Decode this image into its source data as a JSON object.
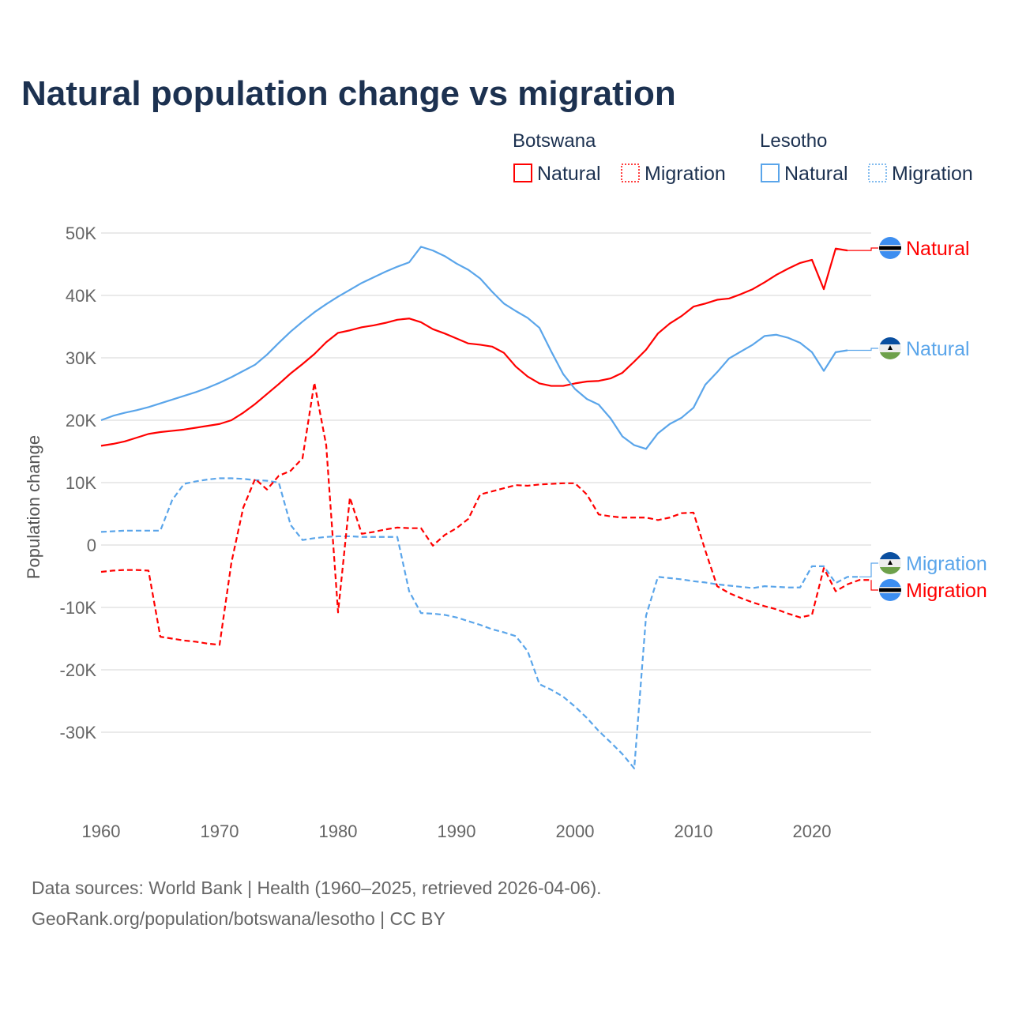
{
  "title": "Natural population change vs migration",
  "legend": {
    "groups": [
      {
        "country": "Botswana",
        "items": [
          "Natural",
          "Migration"
        ],
        "color": "#ff0000"
      },
      {
        "country": "Lesotho",
        "items": [
          "Natural",
          "Migration"
        ],
        "color": "#5aa5ea"
      }
    ]
  },
  "footer": {
    "line1": "Data sources: World Bank | Health (1960–2025, retrieved 2026-04-06).",
    "line2": "GeoRank.org/population/botswana/lesotho | CC BY"
  },
  "chart_data": {
    "type": "line",
    "title": "Natural population change vs migration",
    "xlabel": "",
    "ylabel": "Population change",
    "xlim": [
      1960,
      2025
    ],
    "ylim": [
      -40000,
      50000
    ],
    "x_ticks": [
      "1960",
      "1970",
      "1980",
      "1990",
      "2000",
      "2010",
      "2020"
    ],
    "y_ticks": [
      {
        "v": 50000,
        "label": "50K"
      },
      {
        "v": 40000,
        "label": "40K"
      },
      {
        "v": 30000,
        "label": "30K"
      },
      {
        "v": 20000,
        "label": "20K"
      },
      {
        "v": 10000,
        "label": "10K"
      },
      {
        "v": 0,
        "label": "0"
      },
      {
        "v": -10000,
        "label": "-10K"
      },
      {
        "v": -20000,
        "label": "-20K"
      },
      {
        "v": -30000,
        "label": "-30K"
      }
    ],
    "grid": true,
    "x_start": 1960,
    "series": [
      {
        "name": "Botswana Natural",
        "label": "Natural",
        "country": "Botswana",
        "color": "#ff0000",
        "dashed": false,
        "values": [
          15.9,
          16.2,
          16.6,
          17.2,
          17.8,
          18.1,
          18.3,
          18.5,
          18.8,
          19.1,
          19.4,
          20.0,
          21.2,
          22.6,
          24.2,
          25.8,
          27.5,
          29.0,
          30.6,
          32.5,
          34.0,
          34.4,
          34.9,
          35.2,
          35.6,
          36.1,
          36.3,
          35.7,
          34.6,
          33.9,
          33.1,
          32.3,
          32.1,
          31.8,
          30.8,
          28.6,
          27.0,
          25.9,
          25.5,
          25.5,
          25.9,
          26.2,
          26.3,
          26.7,
          27.6,
          29.4,
          31.3,
          33.9,
          35.5,
          36.7,
          38.2,
          38.7,
          39.3,
          39.5,
          40.2,
          41.0,
          42.1,
          43.3,
          44.3,
          45.2,
          45.7,
          41.0,
          47.5,
          47.2
        ]
      },
      {
        "name": "Lesotho Natural",
        "label": "Natural",
        "country": "Lesotho",
        "color": "#5aa5ea",
        "dashed": false,
        "values": [
          20.0,
          20.7,
          21.2,
          21.6,
          22.1,
          22.7,
          23.3,
          23.9,
          24.5,
          25.2,
          26.0,
          26.9,
          27.9,
          28.9,
          30.5,
          32.4,
          34.2,
          35.8,
          37.3,
          38.6,
          39.8,
          40.9,
          42.0,
          42.9,
          43.8,
          44.6,
          45.3,
          47.8,
          47.2,
          46.3,
          45.1,
          44.1,
          42.7,
          40.6,
          38.7,
          37.5,
          36.4,
          34.8,
          31.0,
          27.4,
          25.0,
          23.4,
          22.5,
          20.3,
          17.4,
          16.0,
          15.4,
          17.9,
          19.4,
          20.4,
          22.0,
          25.7,
          27.7,
          29.9,
          31.0,
          32.1,
          33.5,
          33.7,
          33.2,
          32.4,
          30.9,
          27.9,
          30.9,
          31.2
        ]
      },
      {
        "name": "Lesotho Migration",
        "label": "Migration",
        "country": "Lesotho",
        "color": "#5aa5ea",
        "dashed": true,
        "values": [
          2.1,
          2.2,
          2.3,
          2.3,
          2.3,
          2.3,
          7.2,
          9.8,
          10.2,
          10.5,
          10.7,
          10.7,
          10.6,
          10.4,
          10.3,
          10.0,
          3.2,
          0.8,
          1.1,
          1.3,
          1.4,
          1.4,
          1.3,
          1.3,
          1.3,
          1.3,
          -7.4,
          -10.9,
          -11.0,
          -11.2,
          -11.6,
          -12.2,
          -12.8,
          -13.5,
          -14.0,
          -14.6,
          -17.0,
          -22.3,
          -23.2,
          -24.3,
          -25.9,
          -27.7,
          -29.8,
          -31.6,
          -33.5,
          -35.8,
          -11.3,
          -5.1,
          -5.3,
          -5.5,
          -5.8,
          -6.0,
          -6.3,
          -6.5,
          -6.7,
          -6.9,
          -6.6,
          -6.7,
          -6.8,
          -6.8,
          -3.4,
          -3.4,
          -6.1,
          -5.1,
          -5.1
        ]
      },
      {
        "name": "Botswana Migration",
        "label": "Migration",
        "country": "Botswana",
        "color": "#ff0000",
        "dashed": true,
        "values": [
          -4.3,
          -4.1,
          -4.0,
          -4.0,
          -4.1,
          -14.7,
          -15.0,
          -15.3,
          -15.5,
          -15.8,
          -16.0,
          -2.8,
          6.0,
          10.6,
          8.9,
          11.1,
          11.9,
          13.9,
          26.0,
          16.0,
          -10.8,
          7.6,
          1.8,
          2.1,
          2.5,
          2.8,
          2.7,
          2.7,
          -0.1,
          1.6,
          2.7,
          4.2,
          8.1,
          8.6,
          9.1,
          9.6,
          9.5,
          9.7,
          9.8,
          9.9,
          9.9,
          8.1,
          4.9,
          4.6,
          4.4,
          4.4,
          4.4,
          4.0,
          4.4,
          5.1,
          5.2,
          -0.9,
          -6.6,
          -7.7,
          -8.5,
          -9.2,
          -9.8,
          -10.3,
          -11.0,
          -11.6,
          -11.2,
          -3.7,
          -7.4,
          -6.3,
          -5.6,
          -5.6
        ]
      }
    ],
    "value_unit": "thousands"
  }
}
